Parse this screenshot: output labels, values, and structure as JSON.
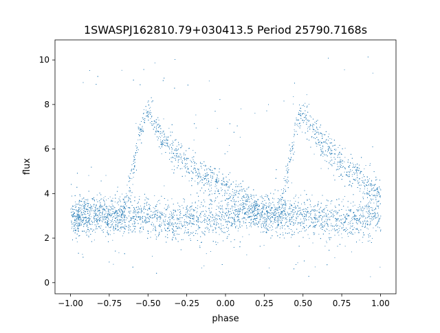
{
  "chart_data": {
    "type": "scatter",
    "title": "1SWASPJ162810.79+030413.5 Period 25790.7168s",
    "xlabel": "phase",
    "ylabel": "flux",
    "xlim": [
      -1.1,
      1.1
    ],
    "ylim": [
      -0.5,
      10.9
    ],
    "x_ticks": [
      -1.0,
      -0.75,
      -0.5,
      -0.25,
      0.0,
      0.25,
      0.5,
      0.75,
      1.0
    ],
    "x_tick_labels": [
      "−1.00",
      "−0.75",
      "−0.50",
      "−0.25",
      "0.00",
      "0.25",
      "0.50",
      "0.75",
      "1.00"
    ],
    "y_ticks": [
      0,
      2,
      4,
      6,
      8,
      10
    ],
    "y_tick_labels": [
      "0",
      "2",
      "4",
      "6",
      "8",
      "10"
    ],
    "grid": false,
    "legend": "none",
    "marker_color": "#1f77b4",
    "series": [
      {
        "values_description_points": [
          {
            "x": -1.0,
            "y": 3.0
          },
          {
            "x": -0.75,
            "y": 2.9
          },
          {
            "x": -0.66,
            "y": 3.1
          },
          {
            "x": -0.6,
            "y": 5.0
          },
          {
            "x": -0.55,
            "y": 7.0
          },
          {
            "x": -0.5,
            "y": 7.7
          },
          {
            "x": -0.4,
            "y": 6.4
          },
          {
            "x": -0.25,
            "y": 5.3
          },
          {
            "x": 0.0,
            "y": 4.2
          },
          {
            "x": 0.25,
            "y": 3.1
          },
          {
            "x": 0.34,
            "y": 3.1
          },
          {
            "x": 0.4,
            "y": 5.0
          },
          {
            "x": 0.45,
            "y": 7.0
          },
          {
            "x": 0.5,
            "y": 7.7
          },
          {
            "x": 0.6,
            "y": 6.4
          },
          {
            "x": 0.75,
            "y": 5.3
          },
          {
            "x": 1.0,
            "y": 4.0
          }
        ]
      }
    ]
  }
}
